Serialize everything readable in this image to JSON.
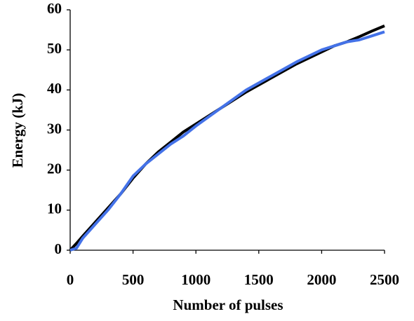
{
  "chart_data": {
    "type": "line",
    "xlabel": "Number of pulses",
    "ylabel": "Energy (kJ)",
    "x": [
      0,
      50,
      100,
      200,
      300,
      400,
      500,
      600,
      700,
      800,
      900,
      1000,
      1200,
      1400,
      1600,
      1800,
      2000,
      2100,
      2200,
      2300,
      2400,
      2500
    ],
    "series": [
      {
        "color": "#000000",
        "values": [
          0,
          1.7,
          3.5,
          7,
          10.5,
          14,
          18,
          21.5,
          24.5,
          27,
          29.5,
          31.5,
          35.5,
          39.5,
          43,
          46.5,
          49.5,
          51,
          52,
          53.3,
          54.7,
          56
        ]
      },
      {
        "color": "#4472e8",
        "values": [
          0,
          0.5,
          3,
          6.5,
          10,
          14,
          18.5,
          21.5,
          24,
          26.5,
          28.5,
          31,
          35.5,
          40,
          43.5,
          47,
          50,
          51,
          52,
          52.5,
          53.5,
          54.5
        ]
      }
    ],
    "xlim": [
      0,
      2500
    ],
    "xticks": [
      0,
      500,
      1000,
      1500,
      2000,
      2500
    ],
    "ylim": [
      0,
      60
    ],
    "yticks": [
      0,
      10,
      20,
      30,
      40,
      50,
      60
    ],
    "grid": false
  }
}
